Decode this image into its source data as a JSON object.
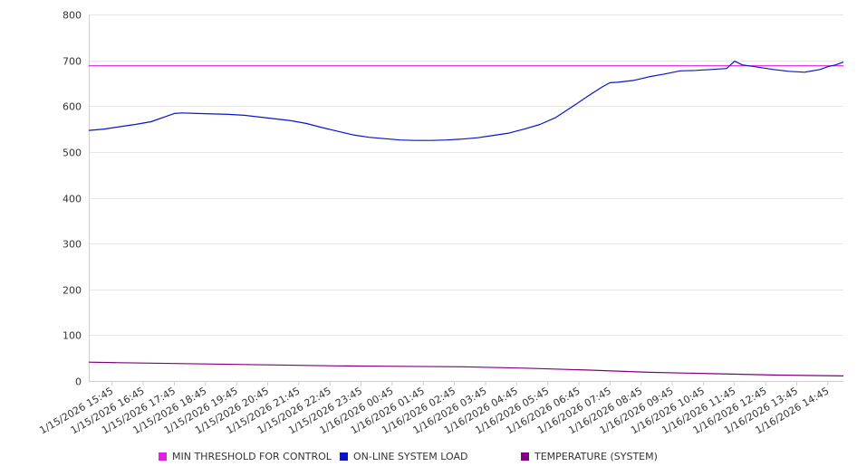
{
  "chart_data": {
    "type": "line",
    "title": "",
    "xlabel": "",
    "ylabel": "",
    "ylim": [
      0,
      800
    ],
    "y_ticks": [
      0,
      100,
      200,
      300,
      400,
      500,
      600,
      700,
      800
    ],
    "grid": true,
    "legend_position": "bottom",
    "x_tick_labels": [
      "1/15/2026 15:45",
      "1/15/2026 16:45",
      "1/15/2026 17:45",
      "1/15/2026 18:45",
      "1/15/2026 19:45",
      "1/15/2026 20:45",
      "1/15/2026 21:45",
      "1/15/2026 22:45",
      "1/15/2026 23:45",
      "1/16/2026 00:45",
      "1/16/2026 01:45",
      "1/16/2026 02:45",
      "1/16/2026 03:45",
      "1/16/2026 04:45",
      "1/16/2026 05:45",
      "1/16/2026 06:45",
      "1/16/2026 07:45",
      "1/16/2026 08:45",
      "1/16/2026 09:45",
      "1/16/2026 10:45",
      "1/16/2026 11:45",
      "1/16/2026 12:45",
      "1/16/2026 13:45",
      "1/16/2026 14:45"
    ],
    "x_start": "1/15/2026 15:00",
    "x_end": "1/16/2026 15:15",
    "series": [
      {
        "name": "MIN THRESHOLD FOR CONTROL",
        "color": "#e020e0",
        "points": [
          [
            "1/15/2026 15:00",
            688
          ],
          [
            "1/16/2026 15:15",
            688
          ]
        ]
      },
      {
        "name": "ON-LINE SYSTEM LOAD",
        "color": "#0a14c8",
        "points": [
          [
            "1/15/2026 15:00",
            547
          ],
          [
            "1/15/2026 15:30",
            550
          ],
          [
            "1/15/2026 16:00",
            555
          ],
          [
            "1/15/2026 16:30",
            560
          ],
          [
            "1/15/2026 17:00",
            566
          ],
          [
            "1/15/2026 17:30",
            578
          ],
          [
            "1/15/2026 17:45",
            584
          ],
          [
            "1/15/2026 18:00",
            585
          ],
          [
            "1/15/2026 18:30",
            584
          ],
          [
            "1/15/2026 19:00",
            583
          ],
          [
            "1/15/2026 19:30",
            582
          ],
          [
            "1/15/2026 20:00",
            580
          ],
          [
            "1/15/2026 20:30",
            576
          ],
          [
            "1/15/2026 21:00",
            572
          ],
          [
            "1/15/2026 21:30",
            568
          ],
          [
            "1/15/2026 22:00",
            562
          ],
          [
            "1/15/2026 22:30",
            553
          ],
          [
            "1/15/2026 23:00",
            545
          ],
          [
            "1/15/2026 23:30",
            537
          ],
          [
            "1/16/2026 00:00",
            532
          ],
          [
            "1/16/2026 00:30",
            529
          ],
          [
            "1/16/2026 01:00",
            526
          ],
          [
            "1/16/2026 01:30",
            525
          ],
          [
            "1/16/2026 02:00",
            525
          ],
          [
            "1/16/2026 02:30",
            526
          ],
          [
            "1/16/2026 03:00",
            528
          ],
          [
            "1/16/2026 03:30",
            531
          ],
          [
            "1/16/2026 04:00",
            536
          ],
          [
            "1/16/2026 04:30",
            541
          ],
          [
            "1/16/2026 05:00",
            550
          ],
          [
            "1/16/2026 05:30",
            560
          ],
          [
            "1/16/2026 06:00",
            575
          ],
          [
            "1/16/2026 06:30",
            597
          ],
          [
            "1/16/2026 07:00",
            620
          ],
          [
            "1/16/2026 07:30",
            642
          ],
          [
            "1/16/2026 07:45",
            651
          ],
          [
            "1/16/2026 08:00",
            652
          ],
          [
            "1/16/2026 08:30",
            656
          ],
          [
            "1/16/2026 09:00",
            664
          ],
          [
            "1/16/2026 09:30",
            670
          ],
          [
            "1/16/2026 10:00",
            677
          ],
          [
            "1/16/2026 10:30",
            678
          ],
          [
            "1/16/2026 11:00",
            680
          ],
          [
            "1/16/2026 11:30",
            682
          ],
          [
            "1/16/2026 11:45",
            698
          ],
          [
            "1/16/2026 12:00",
            690
          ],
          [
            "1/16/2026 12:30",
            685
          ],
          [
            "1/16/2026 13:00",
            680
          ],
          [
            "1/16/2026 13:30",
            676
          ],
          [
            "1/16/2026 14:00",
            674
          ],
          [
            "1/16/2026 14:30",
            680
          ],
          [
            "1/16/2026 14:45",
            686
          ],
          [
            "1/16/2026 15:00",
            690
          ],
          [
            "1/16/2026 15:15",
            696
          ]
        ]
      },
      {
        "name": "TEMPERATURE (SYSTEM)",
        "color": "#800080",
        "points": [
          [
            "1/15/2026 15:00",
            41
          ],
          [
            "1/15/2026 16:00",
            40
          ],
          [
            "1/15/2026 17:00",
            39
          ],
          [
            "1/15/2026 19:00",
            37
          ],
          [
            "1/15/2026 21:00",
            35
          ],
          [
            "1/15/2026 23:00",
            33
          ],
          [
            "1/16/2026 01:00",
            32
          ],
          [
            "1/16/2026 03:00",
            31
          ],
          [
            "1/16/2026 05:00",
            28
          ],
          [
            "1/16/2026 07:00",
            24
          ],
          [
            "1/16/2026 09:00",
            19
          ],
          [
            "1/16/2026 11:00",
            16
          ],
          [
            "1/16/2026 13:00",
            13
          ],
          [
            "1/16/2026 15:15",
            11
          ]
        ]
      }
    ]
  }
}
